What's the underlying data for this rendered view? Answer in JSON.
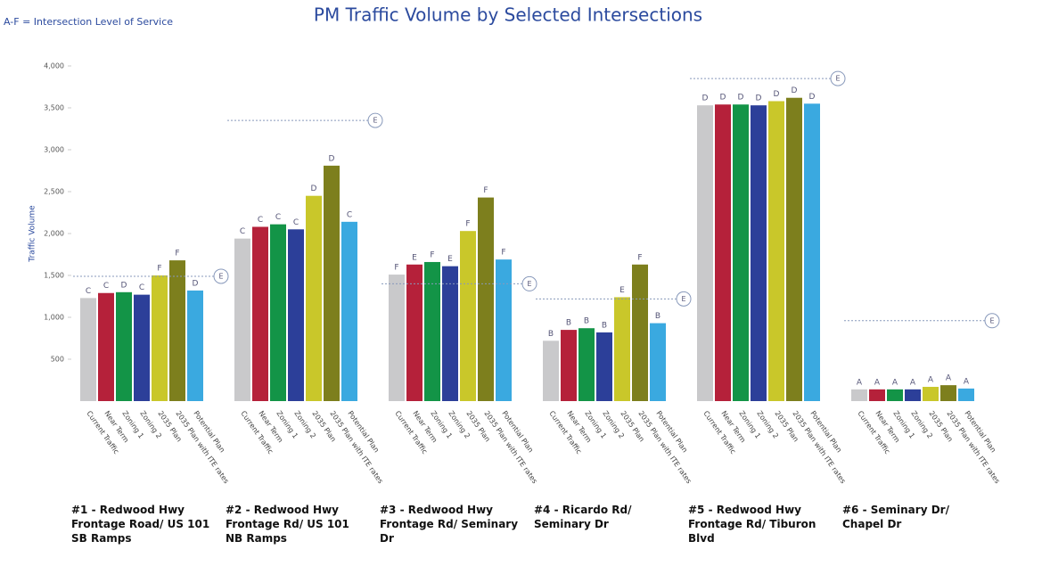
{
  "chart_data": {
    "type": "bar",
    "title": "PM Traffic Volume by Selected Intersections",
    "note": "A-F = Intersection Level of Service",
    "y_label": "Traffic Volume",
    "categories": [
      "#1 - Redwood Hwy Frontage Road/ US 101 SB Ramps",
      "#2 - Redwood Hwy Frontage Rd/ US 101 NB Ramps",
      "#3 - Redwood Hwy Frontage Rd/ Seminary Dr",
      "#4 - Ricardo Rd/ Seminary Dr",
      "#5 - Redwood Hwy Frontage Rd/ Tiburon Blvd",
      "#6 - Seminary Dr/ Chapel Dr"
    ],
    "series": [
      {
        "name": "Current Traffic",
        "color": "#c9c9cb",
        "values": [
          1230,
          1940,
          1510,
          720,
          3530,
          140
        ],
        "los": [
          "C",
          "C",
          "F",
          "B",
          "D",
          "A"
        ]
      },
      {
        "name": "Near Term",
        "color": "#b5213a",
        "values": [
          1290,
          2080,
          1630,
          850,
          3540,
          140
        ],
        "los": [
          "C",
          "C",
          "E",
          "B",
          "D",
          "A"
        ]
      },
      {
        "name": "Zoning 1",
        "color": "#139447",
        "values": [
          1300,
          2110,
          1660,
          870,
          3540,
          140
        ],
        "los": [
          "D",
          "C",
          "F",
          "B",
          "D",
          "A"
        ]
      },
      {
        "name": "Zoning 2",
        "color": "#2c3f99",
        "values": [
          1270,
          2050,
          1610,
          820,
          3530,
          140
        ],
        "los": [
          "C",
          "C",
          "E",
          "B",
          "D",
          "A"
        ]
      },
      {
        "name": "2035 Plan",
        "color": "#c9c72a",
        "values": [
          1500,
          2450,
          2030,
          1240,
          3580,
          170
        ],
        "los": [
          "F",
          "D",
          "F",
          "E",
          "D",
          "A"
        ]
      },
      {
        "name": "2035 Plan with ITE rates",
        "color": "#7d7f1d",
        "values": [
          1680,
          2810,
          2430,
          1630,
          3620,
          190
        ],
        "los": [
          "F",
          "D",
          "F",
          "F",
          "D",
          "A"
        ]
      },
      {
        "name": "Potential Plan",
        "color": "#3aa9e0",
        "values": [
          1320,
          2140,
          1690,
          930,
          3550,
          150
        ],
        "los": [
          "D",
          "C",
          "F",
          "B",
          "D",
          "A"
        ]
      }
    ],
    "thresholds": [
      {
        "value": 1490,
        "label": "E"
      },
      {
        "value": 3350,
        "label": "E"
      },
      {
        "value": 1400,
        "label": "E"
      },
      {
        "value": 1220,
        "label": "E"
      },
      {
        "value": 3850,
        "label": "E"
      },
      {
        "value": 960,
        "label": "E"
      }
    ],
    "ylim": [
      0,
      4000
    ],
    "yticks": [
      500,
      {
        "value": 1000,
        "label": "1,000"
      },
      {
        "value": 1500,
        "label": "1,500"
      },
      {
        "value": 2000,
        "label": "2,000"
      },
      {
        "value": 2500,
        "label": "2,500"
      },
      {
        "value": 3000,
        "label": "3,000"
      },
      {
        "value": 3500,
        "label": "3,500"
      },
      {
        "value": 4000,
        "label": "4,000"
      }
    ],
    "grid": false
  }
}
